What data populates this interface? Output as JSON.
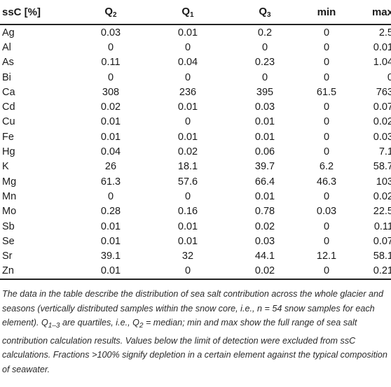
{
  "table": {
    "headers": [
      {
        "main": "ssC [%]",
        "sub": ""
      },
      {
        "main": "Q",
        "sub": "2"
      },
      {
        "main": "Q",
        "sub": "1"
      },
      {
        "main": "Q",
        "sub": "3"
      },
      {
        "main": "min",
        "sub": ""
      },
      {
        "main": "max",
        "sub": ""
      }
    ],
    "rows": [
      [
        "Ag",
        "0.03",
        "0.01",
        "0.2",
        "0",
        "2.5"
      ],
      [
        "Al",
        "0",
        "0",
        "0",
        "0",
        "0.01"
      ],
      [
        "As",
        "0.11",
        "0.04",
        "0.23",
        "0",
        "1.04"
      ],
      [
        "Bi",
        "0",
        "0",
        "0",
        "0",
        "0"
      ],
      [
        "Ca",
        "308",
        "236",
        "395",
        "61.5",
        "763"
      ],
      [
        "Cd",
        "0.02",
        "0.01",
        "0.03",
        "0",
        "0.07"
      ],
      [
        "Cu",
        "0.01",
        "0",
        "0.01",
        "0",
        "0.02"
      ],
      [
        "Fe",
        "0.01",
        "0.01",
        "0.01",
        "0",
        "0.03"
      ],
      [
        "Hg",
        "0.04",
        "0.02",
        "0.06",
        "0",
        "7.1"
      ],
      [
        "K",
        "26",
        "18.1",
        "39.7",
        "6.2",
        "58.7"
      ],
      [
        "Mg",
        "61.3",
        "57.6",
        "66.4",
        "46.3",
        "103"
      ],
      [
        "Mn",
        "0",
        "0",
        "0.01",
        "0",
        "0.02"
      ],
      [
        "Mo",
        "0.28",
        "0.16",
        "0.78",
        "0.03",
        "22.5"
      ],
      [
        "Sb",
        "0.01",
        "0.01",
        "0.02",
        "0",
        "0.11"
      ],
      [
        "Se",
        "0.01",
        "0.01",
        "0.03",
        "0",
        "0.07"
      ],
      [
        "Sr",
        "39.1",
        "32",
        "44.1",
        "12.1",
        "58.1"
      ],
      [
        "Zn",
        "0.01",
        "0",
        "0.02",
        "0",
        "0.21"
      ]
    ]
  },
  "footnote": "The data in the table describe the distribution of sea salt contribution across the whole glacier and seasons (vertically distributed samples within the snow core, i.e., n = 54 snow samples for each element). Q1–3 are quartiles, i.e., Q2 = median; min and max show the full range of sea salt contribution calculation results. Values below the limit of detection were excluded from ssC calculations. Fractions >100% signify depletion in a certain element against the typical composition of seawater."
}
